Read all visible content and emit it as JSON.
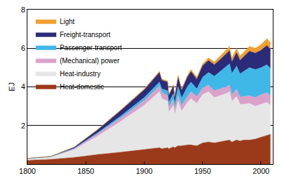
{
  "chart_data": {
    "type": "area",
    "stacked": true,
    "y_label": "EJ",
    "x": [
      1800,
      1820,
      1840,
      1860,
      1880,
      1900,
      1913,
      1915,
      1920,
      1921,
      1925,
      1926,
      1929,
      1932,
      1937,
      1940,
      1945,
      1950,
      1955,
      1960,
      1965,
      1970,
      1973,
      1975,
      1979,
      1982,
      1985,
      1990,
      1995,
      2000,
      2005,
      2008
    ],
    "series": [
      {
        "name": "Heat-domestic",
        "color": "#9b3a1a",
        "values": [
          0.2,
          0.25,
          0.35,
          0.5,
          0.62,
          0.75,
          0.85,
          0.8,
          0.85,
          0.8,
          0.9,
          0.85,
          0.95,
          0.95,
          1.0,
          1.0,
          0.95,
          1.1,
          1.15,
          1.1,
          1.15,
          1.2,
          1.25,
          1.15,
          1.25,
          1.2,
          1.25,
          1.25,
          1.3,
          1.4,
          1.5,
          1.55
        ]
      },
      {
        "name": "Heat-industry",
        "color": "#e6e6e6",
        "values": [
          0.08,
          0.12,
          0.4,
          0.95,
          1.6,
          2.3,
          2.9,
          2.6,
          2.4,
          1.9,
          2.15,
          1.7,
          2.3,
          1.8,
          2.2,
          2.4,
          2.2,
          2.5,
          2.6,
          2.35,
          2.4,
          2.45,
          2.5,
          2.1,
          2.25,
          1.9,
          1.85,
          1.9,
          1.7,
          1.7,
          1.7,
          1.5
        ]
      },
      {
        "name": "(Mechanical) power",
        "color": "#d9a3c9",
        "values": [
          0.01,
          0.02,
          0.05,
          0.12,
          0.18,
          0.25,
          0.3,
          0.3,
          0.3,
          0.28,
          0.3,
          0.28,
          0.32,
          0.28,
          0.32,
          0.35,
          0.35,
          0.35,
          0.35,
          0.35,
          0.35,
          0.35,
          0.35,
          0.35,
          0.38,
          0.38,
          0.4,
          0.4,
          0.45,
          0.5,
          0.5,
          0.5
        ]
      },
      {
        "name": "Passenger-transport",
        "color": "#3fb8e8",
        "values": [
          0.0,
          0.0,
          0.02,
          0.05,
          0.1,
          0.15,
          0.2,
          0.2,
          0.25,
          0.22,
          0.3,
          0.28,
          0.45,
          0.4,
          0.5,
          0.5,
          0.4,
          0.55,
          0.65,
          0.75,
          0.9,
          1.05,
          1.1,
          1.1,
          1.2,
          1.2,
          1.3,
          1.45,
          1.45,
          1.4,
          1.45,
          1.4
        ]
      },
      {
        "name": "Freight-transport",
        "color": "#2b2b7a",
        "values": [
          0.0,
          0.01,
          0.05,
          0.15,
          0.28,
          0.4,
          0.5,
          0.45,
          0.45,
          0.36,
          0.4,
          0.35,
          0.5,
          0.4,
          0.5,
          0.55,
          0.5,
          0.6,
          0.62,
          0.6,
          0.62,
          0.65,
          0.68,
          0.6,
          0.7,
          0.7,
          0.75,
          0.85,
          0.85,
          0.9,
          1.0,
          1.0
        ]
      },
      {
        "name": "Light",
        "color": "#f0a030",
        "values": [
          0.01,
          0.01,
          0.02,
          0.03,
          0.04,
          0.05,
          0.06,
          0.06,
          0.06,
          0.05,
          0.06,
          0.05,
          0.08,
          0.07,
          0.08,
          0.1,
          0.1,
          0.1,
          0.13,
          0.15,
          0.18,
          0.2,
          0.22,
          0.2,
          0.22,
          0.22,
          0.25,
          0.25,
          0.25,
          0.3,
          0.35,
          0.35
        ]
      }
    ],
    "xlim": [
      1800,
      2010
    ],
    "xticks": [
      1800,
      1850,
      1900,
      1950,
      2000
    ],
    "ylim": [
      0,
      8
    ],
    "yticks": [
      2,
      4,
      6,
      8
    ],
    "grid": true,
    "legend": "top left"
  }
}
